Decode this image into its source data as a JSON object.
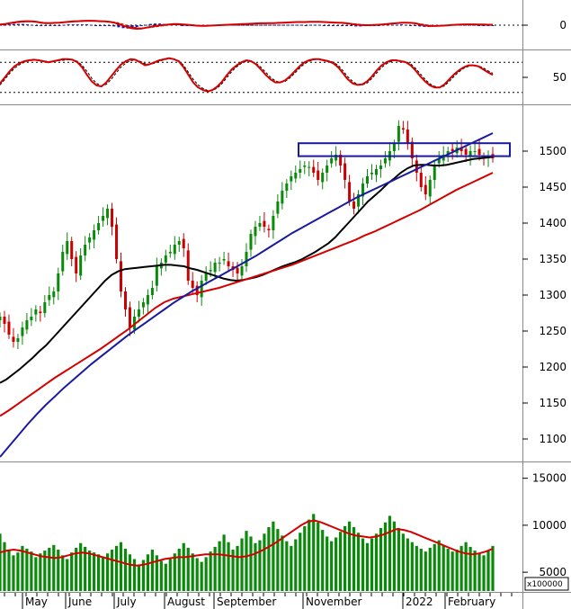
{
  "chart_data": [
    {
      "type": "line",
      "panel": "macd",
      "ylim": [
        -120,
        120
      ],
      "y_ticks": [
        0
      ],
      "series": [
        {
          "role": "macd",
          "color": "#d40000",
          "values": [
            3,
            5,
            9,
            13,
            16,
            18,
            19,
            18,
            16,
            12,
            10,
            10,
            11,
            12,
            14,
            16,
            18,
            19,
            20,
            21,
            21,
            20,
            19,
            18,
            16,
            12,
            6,
            -2,
            -10,
            -15,
            -17,
            -16,
            -12,
            -8,
            -4,
            -1,
            1,
            3,
            5,
            5,
            4,
            2,
            0,
            -2,
            -3,
            -3,
            -2,
            -1,
            0,
            1,
            2,
            3,
            4,
            5,
            6,
            7,
            8,
            9,
            9,
            10,
            10,
            11,
            12,
            13,
            14,
            15,
            15,
            15,
            16,
            16,
            16,
            15,
            14,
            13,
            12,
            11,
            9,
            6,
            3,
            1,
            0,
            0,
            1,
            2,
            4,
            6,
            8,
            10,
            12,
            12,
            11,
            9,
            4,
            -1,
            -4,
            -4,
            -3,
            -2,
            -1,
            1,
            2,
            3,
            4,
            4,
            4,
            3,
            3,
            2,
            2
          ]
        },
        {
          "role": "signal",
          "color": "#d40000",
          "dash": true,
          "values": [
            2,
            4,
            7,
            10,
            13,
            15,
            17,
            17,
            16,
            14,
            12,
            11,
            11,
            12,
            13,
            14,
            16,
            17,
            18,
            19,
            20,
            20,
            19,
            19,
            17,
            15,
            11,
            5,
            -2,
            -8,
            -12,
            -14,
            -13,
            -11,
            -8,
            -5,
            -2,
            0,
            2,
            3,
            4,
            3,
            2,
            0,
            -1,
            -2,
            -2,
            -2,
            -1,
            0,
            1,
            2,
            3,
            4,
            5,
            6,
            7,
            8,
            8,
            9,
            9,
            10,
            11,
            12,
            13,
            14,
            14,
            15,
            15,
            15,
            15,
            15,
            14,
            13,
            12,
            11,
            10,
            8,
            6,
            4,
            2,
            1,
            1,
            2,
            3,
            5,
            7,
            9,
            10,
            11,
            11,
            10,
            7,
            3,
            0,
            -2,
            -2,
            -2,
            -1,
            0,
            1,
            2,
            3,
            3,
            3,
            3,
            3,
            3,
            3
          ]
        }
      ]
    },
    {
      "type": "line",
      "panel": "oscillator",
      "ylim": [
        0,
        100
      ],
      "y_ticks": [
        50
      ],
      "ref_lines": [
        20,
        80
      ],
      "series": [
        {
          "role": "main",
          "color": "#d40000",
          "values": [
            38,
            50,
            62,
            72,
            78,
            82,
            84,
            85,
            84,
            82,
            80,
            82,
            84,
            86,
            86,
            85,
            80,
            70,
            55,
            42,
            34,
            32,
            40,
            52,
            64,
            75,
            82,
            86,
            85,
            80,
            74,
            76,
            80,
            84,
            86,
            88,
            86,
            82,
            70,
            55,
            40,
            30,
            25,
            22,
            25,
            32,
            42,
            55,
            66,
            74,
            80,
            84,
            82,
            76,
            66,
            55,
            46,
            40,
            40,
            44,
            52,
            62,
            72,
            80,
            84,
            86,
            86,
            84,
            82,
            78,
            70,
            58,
            46,
            38,
            35,
            36,
            42,
            52,
            64,
            74,
            80,
            84,
            84,
            82,
            80,
            74,
            64,
            52,
            42,
            34,
            30,
            30,
            36,
            46,
            56,
            64,
            70,
            74,
            74,
            72,
            66,
            60,
            55
          ]
        },
        {
          "role": "signal",
          "color": "#000000",
          "dash": true,
          "values": [
            35,
            46,
            58,
            68,
            75,
            80,
            83,
            84,
            84,
            83,
            81,
            82,
            83,
            84,
            85,
            85,
            82,
            74,
            62,
            48,
            38,
            33,
            36,
            46,
            58,
            70,
            78,
            83,
            85,
            82,
            77,
            76,
            78,
            82,
            85,
            87,
            86,
            83,
            74,
            60,
            46,
            35,
            28,
            24,
            24,
            29,
            38,
            50,
            62,
            71,
            78,
            82,
            82,
            78,
            70,
            60,
            50,
            43,
            40,
            42,
            49,
            58,
            68,
            77,
            82,
            85,
            86,
            85,
            83,
            80,
            74,
            63,
            51,
            42,
            36,
            35,
            39,
            48,
            59,
            70,
            77,
            82,
            84,
            83,
            81,
            77,
            68,
            57,
            46,
            37,
            32,
            30,
            33,
            42,
            52,
            61,
            68,
            72,
            74,
            73,
            69,
            63,
            58
          ]
        }
      ]
    },
    {
      "type": "candlestick",
      "panel": "price",
      "ylim": [
        1070,
        1560
      ],
      "y_ticks": [
        1100,
        1150,
        1200,
        1250,
        1300,
        1350,
        1400,
        1450,
        1500
      ],
      "rectangle": {
        "y_low": 1493,
        "y_high": 1511,
        "color": "#1a1aa0"
      },
      "close": [
        1270,
        1260,
        1245,
        1235,
        1240,
        1255,
        1265,
        1270,
        1280,
        1275,
        1290,
        1300,
        1305,
        1330,
        1360,
        1375,
        1350,
        1330,
        1355,
        1370,
        1380,
        1390,
        1400,
        1410,
        1420,
        1395,
        1350,
        1305,
        1280,
        1255,
        1270,
        1280,
        1290,
        1300,
        1310,
        1340,
        1345,
        1355,
        1360,
        1370,
        1375,
        1365,
        1320,
        1310,
        1300,
        1320,
        1330,
        1335,
        1345,
        1345,
        1350,
        1340,
        1335,
        1330,
        1340,
        1360,
        1385,
        1395,
        1400,
        1395,
        1390,
        1410,
        1430,
        1445,
        1455,
        1465,
        1470,
        1475,
        1480,
        1478,
        1470,
        1460,
        1470,
        1480,
        1490,
        1495,
        1480,
        1460,
        1430,
        1420,
        1440,
        1455,
        1465,
        1470,
        1475,
        1480,
        1490,
        1500,
        1510,
        1535,
        1530,
        1510,
        1490,
        1470,
        1450,
        1440,
        1460,
        1480,
        1490,
        1495,
        1500,
        1500,
        1505,
        1500,
        1495,
        1500,
        1500,
        1495,
        1490,
        1493,
        1490
      ],
      "series": [
        {
          "role": "ma50",
          "color": "#000000",
          "values": [
            1178,
            1183,
            1190,
            1197,
            1205,
            1213,
            1222,
            1230,
            1240,
            1250,
            1260,
            1270,
            1280,
            1290,
            1300,
            1310,
            1320,
            1328,
            1333,
            1336,
            1337,
            1338,
            1339,
            1340,
            1341,
            1342,
            1342,
            1341,
            1340,
            1337,
            1335,
            1332,
            1329,
            1326,
            1323,
            1321,
            1320,
            1321,
            1323,
            1325,
            1328,
            1332,
            1336,
            1340,
            1343,
            1346,
            1350,
            1355,
            1360,
            1366,
            1372,
            1380,
            1390,
            1400,
            1410,
            1420,
            1430,
            1438,
            1446,
            1455,
            1462,
            1470,
            1476,
            1480,
            1481,
            1481,
            1480,
            1480,
            1481,
            1483,
            1485,
            1487,
            1489,
            1490,
            1491,
            1492
          ]
        },
        {
          "role": "ma100",
          "color": "#d40000",
          "values": [
            1132,
            1140,
            1149,
            1158,
            1167,
            1176,
            1185,
            1193,
            1201,
            1209,
            1217,
            1225,
            1234,
            1243,
            1252,
            1262,
            1272,
            1282,
            1290,
            1295,
            1298,
            1301,
            1304,
            1307,
            1310,
            1314,
            1318,
            1322,
            1326,
            1330,
            1334,
            1338,
            1342,
            1347,
            1352,
            1357,
            1362,
            1367,
            1372,
            1377,
            1383,
            1388,
            1394,
            1400,
            1406,
            1412,
            1418,
            1425,
            1432,
            1439,
            1446,
            1452,
            1458,
            1464,
            1470
          ]
        },
        {
          "role": "ma200",
          "color": "#1a1aa0",
          "values": [
            1075,
            1090,
            1105,
            1120,
            1134,
            1147,
            1159,
            1171,
            1182,
            1193,
            1204,
            1214,
            1224,
            1234,
            1244,
            1253,
            1262,
            1271,
            1280,
            1289,
            1297,
            1305,
            1312,
            1319,
            1326,
            1333,
            1340,
            1347,
            1354,
            1362,
            1370,
            1378,
            1386,
            1393,
            1400,
            1407,
            1414,
            1421,
            1428,
            1435,
            1441,
            1447,
            1453,
            1459,
            1465,
            1471,
            1477,
            1483,
            1489,
            1495,
            1501,
            1507,
            1513,
            1519,
            1525
          ]
        }
      ]
    },
    {
      "type": "bar",
      "panel": "volume",
      "ylim": [
        3000,
        16500
      ],
      "y_ticks": [
        5000,
        10000,
        15000
      ],
      "unit_label": "x100000",
      "values": [
        9100,
        8200,
        7400,
        6800,
        7100,
        7800,
        7500,
        7200,
        6600,
        7000,
        7300,
        7600,
        7900,
        7400,
        6800,
        6400,
        7100,
        7600,
        8100,
        7700,
        7300,
        7100,
        6900,
        6600,
        7000,
        7400,
        7800,
        8200,
        7500,
        6900,
        6400,
        5800,
        6300,
        6900,
        7400,
        6800,
        6200,
        5900,
        6400,
        7000,
        7500,
        8100,
        7600,
        7000,
        6500,
        6100,
        6600,
        7200,
        7700,
        8300,
        9000,
        8200,
        7400,
        7800,
        8600,
        9400,
        8800,
        8100,
        8400,
        9100,
        9800,
        10400,
        9600,
        8900,
        8300,
        7800,
        8500,
        9200,
        9900,
        10600,
        11200,
        10300,
        9500,
        8800,
        8300,
        8700,
        9300,
        9900,
        10400,
        9800,
        9200,
        8600,
        8100,
        8600,
        9100,
        9700,
        10300,
        11000,
        10400,
        9700,
        9100,
        8600,
        8200,
        7800,
        7500,
        7200,
        7600,
        8000,
        8400,
        7900,
        7500,
        7200,
        7400,
        7800,
        8200,
        7700,
        7300,
        7000,
        6800,
        7300,
        7800
      ],
      "series": [
        {
          "role": "volume-ma",
          "color": "#d40000",
          "values": [
            7100,
            7300,
            7400,
            7300,
            7100,
            6900,
            6700,
            6600,
            6500,
            6600,
            6800,
            7000,
            7100,
            7000,
            6800,
            6600,
            6400,
            6200,
            6000,
            5800,
            5700,
            5800,
            6000,
            6200,
            6400,
            6500,
            6600,
            6600,
            6700,
            6800,
            6900,
            6900,
            6900,
            6800,
            6700,
            6600,
            6700,
            6900,
            7200,
            7600,
            8000,
            8500,
            9000,
            9500,
            10000,
            10400,
            10500,
            10300,
            10000,
            9700,
            9400,
            9100,
            8900,
            8800,
            8700,
            8800,
            9000,
            9300,
            9600,
            9500,
            9300,
            9000,
            8700,
            8400,
            8100,
            7800,
            7500,
            7200,
            7000,
            6900,
            7000,
            7200,
            7500
          ]
        }
      ]
    },
    {
      "type": "axis",
      "x_labels": [
        "May",
        "June",
        "July",
        "August",
        "September",
        "November",
        "2022",
        "February"
      ]
    }
  ]
}
